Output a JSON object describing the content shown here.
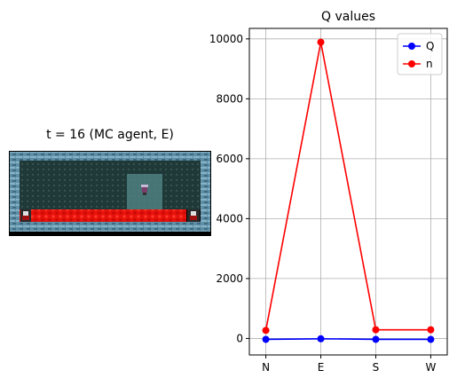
{
  "env": {
    "title": "t = 16 (MC agent, E)"
  },
  "chart_data": {
    "type": "line",
    "title": "Q values",
    "xlabel": "",
    "ylabel": "",
    "categories": [
      "N",
      "E",
      "S",
      "W"
    ],
    "yticks": [
      0,
      2000,
      4000,
      6000,
      8000,
      10000
    ],
    "yticks_text": [
      "0",
      "2000",
      "4000",
      "6000",
      "8000",
      "10000"
    ],
    "ylim": [
      -550,
      10350
    ],
    "grid": true,
    "legend_position": "top-right",
    "series": [
      {
        "name": "Q",
        "color": "#0000ff",
        "values": [
          -30,
          -10,
          -30,
          -30
        ]
      },
      {
        "name": "n",
        "color": "#ff0000",
        "values": [
          270,
          9890,
          290,
          290
        ]
      }
    ]
  }
}
